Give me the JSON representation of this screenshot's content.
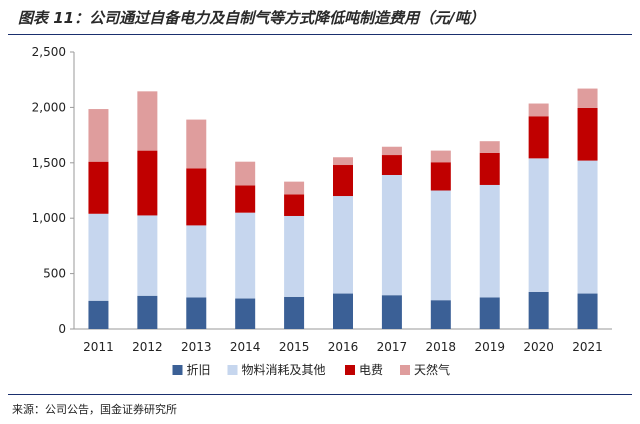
{
  "title": "图表 11：公司通过自备电力及自制气等方式降低吨制造费用（元/吨）",
  "source": "来源：公司公告，国金证券研究所",
  "chart_data": {
    "type": "bar",
    "stacked": true,
    "title": "",
    "xlabel": "",
    "ylabel": "",
    "ylim": [
      0,
      2500
    ],
    "yticks": [
      0,
      500,
      1000,
      1500,
      2000,
      2500
    ],
    "ytick_labels": [
      "0",
      "500",
      "1,000",
      "1,500",
      "2,000",
      "2,500"
    ],
    "grid": false,
    "legend_position": "bottom",
    "categories": [
      "2011",
      "2012",
      "2013",
      "2014",
      "2015",
      "2016",
      "2017",
      "2018",
      "2019",
      "2020",
      "2021"
    ],
    "series": [
      {
        "name": "折旧",
        "color": "#3b6096",
        "values": [
          255,
          300,
          285,
          275,
          290,
          320,
          305,
          260,
          285,
          335,
          320
        ]
      },
      {
        "name": "物料消耗及其他",
        "color": "#c6d6ee",
        "values": [
          785,
          725,
          650,
          775,
          730,
          880,
          1085,
          990,
          1015,
          1205,
          1200
        ]
      },
      {
        "name": "电费",
        "color": "#c00000",
        "values": [
          470,
          585,
          515,
          245,
          195,
          280,
          180,
          255,
          290,
          380,
          475
        ]
      },
      {
        "name": "天然气",
        "color": "#df9d9d",
        "values": [
          475,
          535,
          440,
          215,
          115,
          70,
          75,
          105,
          105,
          115,
          175
        ]
      }
    ]
  }
}
